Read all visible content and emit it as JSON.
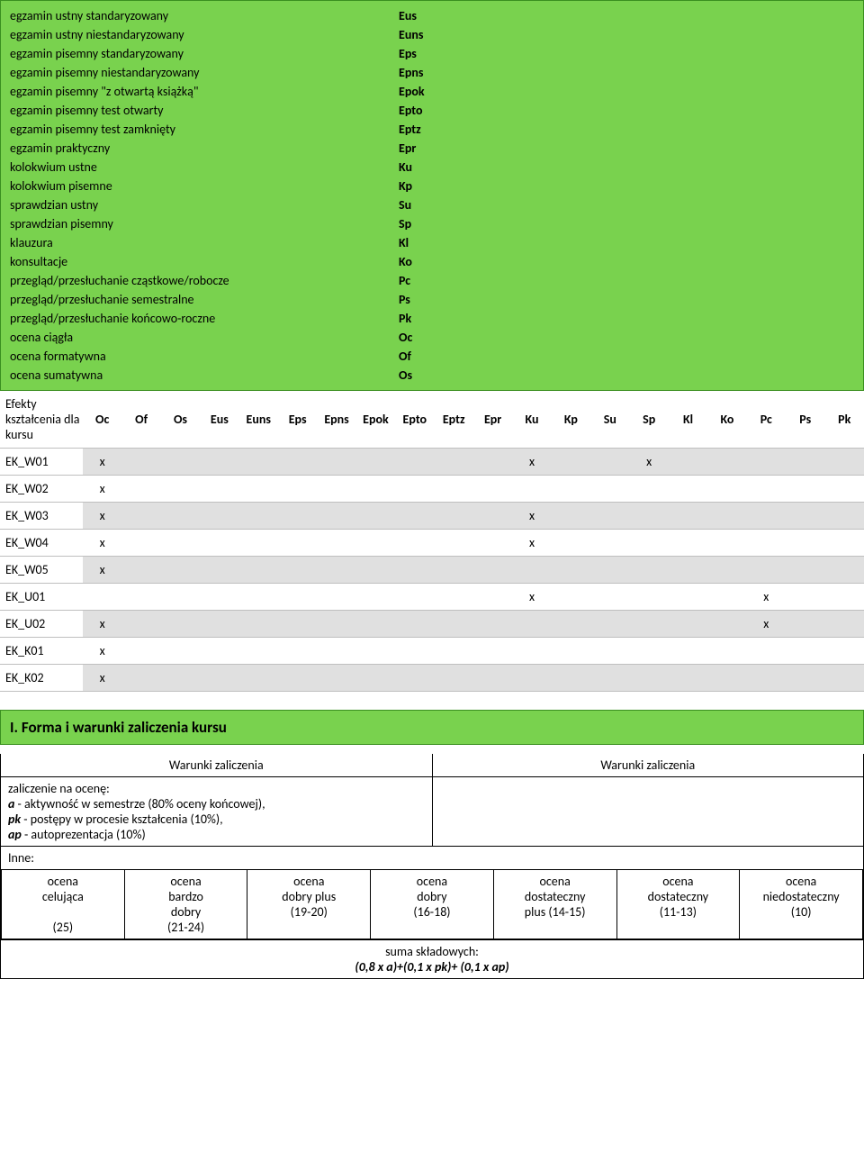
{
  "legend": {
    "rows": [
      {
        "label": "egzamin ustny standaryzowany",
        "code": "Eus"
      },
      {
        "label": "egzamin ustny niestandaryzowany",
        "code": "Euns"
      },
      {
        "label": "egzamin pisemny standaryzowany",
        "code": "Eps"
      },
      {
        "label": "egzamin pisemny niestandaryzowany",
        "code": "Epns"
      },
      {
        "label": "egzamin pisemny \"z otwartą książką\"",
        "code": "Epok"
      },
      {
        "label": "egzamin pisemny test otwarty",
        "code": "Epto"
      },
      {
        "label": "egzamin pisemny test zamknięty",
        "code": "Eptz"
      },
      {
        "label": "egzamin praktyczny",
        "code": "Epr"
      },
      {
        "label": "kolokwium ustne",
        "code": "Ku"
      },
      {
        "label": "kolokwium pisemne",
        "code": "Kp"
      },
      {
        "label": "sprawdzian ustny",
        "code": "Su"
      },
      {
        "label": "sprawdzian pisemny",
        "code": "Sp"
      },
      {
        "label": "klauzura",
        "code": "Kl"
      },
      {
        "label": "konsultacje",
        "code": "Ko"
      },
      {
        "label": "przegląd/przesłuchanie cząstkowe/robocze",
        "code": "Pc"
      },
      {
        "label": "przegląd/przesłuchanie semestralne",
        "code": "Ps"
      },
      {
        "label": "przegląd/przesłuchanie końcowo-roczne",
        "code": "Pk"
      },
      {
        "label": "ocena ciągła",
        "code": "Oc"
      },
      {
        "label": "ocena formatywna",
        "code": "Of"
      },
      {
        "label": "ocena sumatywna",
        "code": "Os"
      }
    ]
  },
  "matrix": {
    "row_header": "Efekty kształcenia dla kursu",
    "columns": [
      "Oc",
      "Of",
      "Os",
      "Eus",
      "Euns",
      "Eps",
      "Epns",
      "Epok",
      "Epto",
      "Eptz",
      "Epr",
      "Ku",
      "Kp",
      "Su",
      "Sp",
      "Kl",
      "Ko",
      "Pc",
      "Ps",
      "Pk"
    ],
    "rows": [
      {
        "name": "EK_W01",
        "cells": [
          "x",
          "",
          "",
          "",
          "",
          "",
          "",
          "",
          "",
          "",
          "",
          "x",
          "",
          "",
          "x",
          "",
          "",
          "",
          "",
          ""
        ]
      },
      {
        "name": "EK_W02",
        "cells": [
          "x",
          "",
          "",
          "",
          "",
          "",
          "",
          "",
          "",
          "",
          "",
          "",
          "",
          "",
          "",
          "",
          "",
          "",
          "",
          ""
        ]
      },
      {
        "name": "EK_W03",
        "cells": [
          "x",
          "",
          "",
          "",
          "",
          "",
          "",
          "",
          "",
          "",
          "",
          "x",
          "",
          "",
          "",
          "",
          "",
          "",
          "",
          ""
        ]
      },
      {
        "name": "EK_W04",
        "cells": [
          "x",
          "",
          "",
          "",
          "",
          "",
          "",
          "",
          "",
          "",
          "",
          "x",
          "",
          "",
          "",
          "",
          "",
          "",
          "",
          ""
        ]
      },
      {
        "name": "EK_W05",
        "cells": [
          "x",
          "",
          "",
          "",
          "",
          "",
          "",
          "",
          "",
          "",
          "",
          "",
          "",
          "",
          "",
          "",
          "",
          "",
          "",
          ""
        ]
      },
      {
        "name": "EK_U01",
        "cells": [
          "",
          "",
          "",
          "",
          "",
          "",
          "",
          "",
          "",
          "",
          "",
          "x",
          "",
          "",
          "",
          "",
          "",
          "x",
          "",
          ""
        ]
      },
      {
        "name": "EK_U02",
        "cells": [
          "x",
          "",
          "",
          "",
          "",
          "",
          "",
          "",
          "",
          "",
          "",
          "",
          "",
          "",
          "",
          "",
          "",
          "x",
          "",
          ""
        ]
      },
      {
        "name": "EK_K01",
        "cells": [
          "x",
          "",
          "",
          "",
          "",
          "",
          "",
          "",
          "",
          "",
          "",
          "",
          "",
          "",
          "",
          "",
          "",
          "",
          "",
          ""
        ]
      },
      {
        "name": "EK_K02",
        "cells": [
          "x",
          "",
          "",
          "",
          "",
          "",
          "",
          "",
          "",
          "",
          "",
          "",
          "",
          "",
          "",
          "",
          "",
          "",
          "",
          ""
        ]
      }
    ]
  },
  "sectionI": {
    "title": "I. Forma i warunki zaliczenia kursu",
    "col1_header": "Warunki zaliczenia",
    "col2_header": "Warunki zaliczenia",
    "col1_body_line1": "zaliczenie na ocenę:",
    "col1_body_line2a": "a",
    "col1_body_line2b": " - aktywność w semestrze (80% oceny końcowej),",
    "col1_body_line3a": "pk",
    "col1_body_line3b": " - postępy w procesie kształcenia (10%),",
    "col1_body_line4a": "ap",
    "col1_body_line4b": " - autoprezentacja (10%)",
    "inne": "Inne:",
    "grades": [
      {
        "l1": "ocena",
        "l2": "celująca",
        "l3": "",
        "l4": "(25)"
      },
      {
        "l1": "ocena",
        "l2": "bardzo",
        "l3": "dobry",
        "l4": "(21-24)"
      },
      {
        "l1": "ocena",
        "l2": "dobry plus",
        "l3": "(19-20)",
        "l4": ""
      },
      {
        "l1": "ocena",
        "l2": "dobry",
        "l3": "(16-18)",
        "l4": ""
      },
      {
        "l1": "ocena",
        "l2": "dostateczny",
        "l3": "plus (14-15)",
        "l4": ""
      },
      {
        "l1": "ocena",
        "l2": "dostateczny",
        "l3": "(11-13)",
        "l4": ""
      },
      {
        "l1": "ocena",
        "l2": "niedostateczny",
        "l3": "(10)",
        "l4": ""
      }
    ],
    "sum_label": "suma składowych:",
    "sum_formula": "(0,8 x a)+(0,1 x pk)+ (0,1 x ap)"
  },
  "style": {
    "green_bg": "#79d24e",
    "green_border": "#3a8f1f",
    "grey_row": "#e0e0e0",
    "grey_border": "#bfbfbf"
  }
}
